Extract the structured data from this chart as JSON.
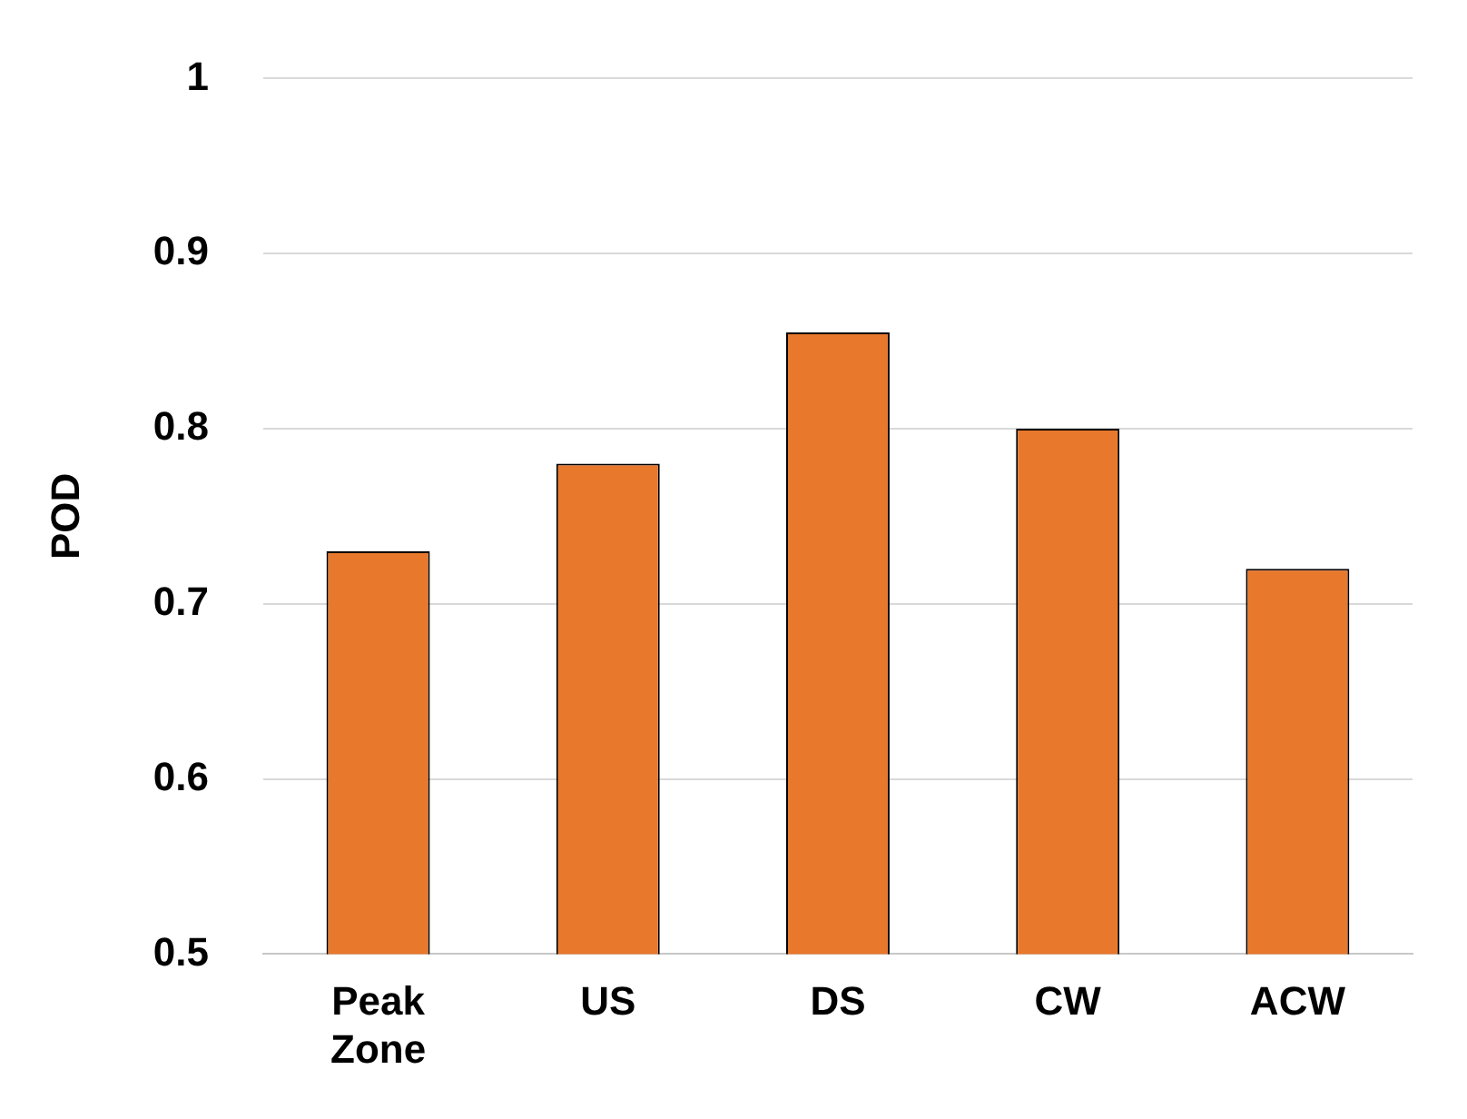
{
  "chart_data": {
    "type": "bar",
    "ylabel": "POD",
    "categories": [
      "Peak Zone",
      "US",
      "DS",
      "CW",
      "ACW"
    ],
    "values": [
      0.73,
      0.78,
      0.855,
      0.8,
      0.72
    ],
    "color": "#e8782c",
    "ylim": [
      0.5,
      1
    ],
    "yticks": [
      0.5,
      0.6,
      0.7,
      0.8,
      0.9,
      1
    ],
    "grid": "y",
    "legend": false
  }
}
